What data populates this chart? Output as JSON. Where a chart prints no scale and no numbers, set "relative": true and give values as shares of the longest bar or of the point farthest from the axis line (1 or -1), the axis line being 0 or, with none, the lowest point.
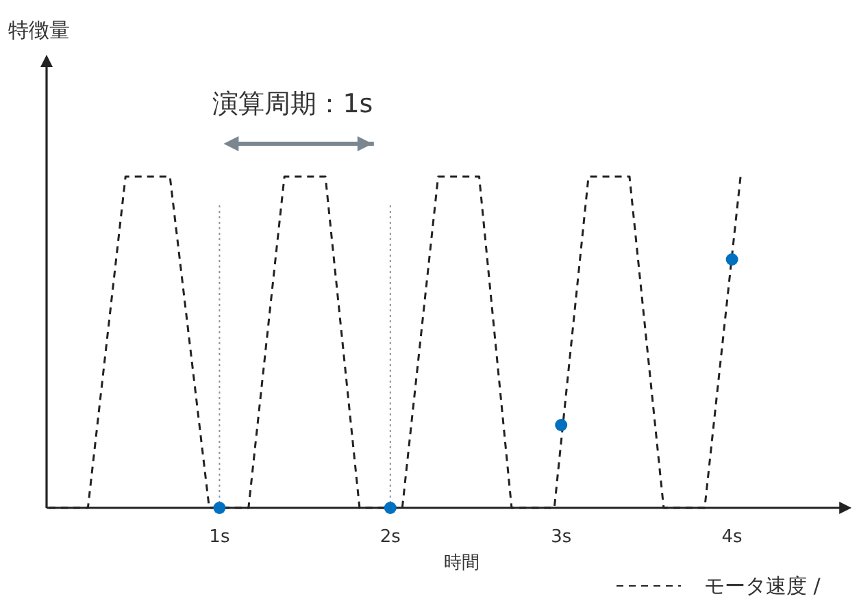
{
  "chart_data": {
    "type": "line",
    "relative": true,
    "xlabel": "時間",
    "legend": "bottom right",
    "xlim": [
      0,
      4.7
    ],
    "xticks": [
      {
        "value": 1,
        "label": "1s"
      },
      {
        "value": 2,
        "label": "2s"
      },
      {
        "value": 3,
        "label": "3s"
      },
      {
        "value": 4,
        "label": "4s"
      }
    ],
    "annotations": [
      "演算周期：1s",
      "特徴量"
    ],
    "ref_lines": [
      {
        "axis": "x",
        "value": 1,
        "label": null,
        "color": "#8a939b",
        "line_style": "dotted"
      },
      {
        "axis": "x",
        "value": 2,
        "label": null,
        "color": "#8a939b",
        "line_style": "dotted"
      }
    ],
    "series": [
      {
        "name": "モータ速度 /",
        "color": "#222222",
        "line_style": "dashed",
        "marker": "none",
        "x": [
          0,
          0.23,
          0.45,
          0.71,
          0.94,
          1.17,
          1.38,
          1.62,
          1.82,
          2.07,
          2.28,
          2.52,
          2.71,
          2.96,
          3.16,
          3.4,
          3.6,
          3.84,
          4.05
        ],
        "values": [
          0,
          0,
          1,
          1,
          0,
          0,
          1,
          1,
          0,
          0,
          1,
          1,
          0,
          0,
          1,
          1,
          0,
          0,
          1
        ]
      },
      {
        "type": "scatter",
        "color": "#0070c0",
        "marker": "circle",
        "x": [
          1,
          2,
          3,
          4
        ],
        "values": [
          0,
          0,
          0.25,
          0.75
        ]
      }
    ]
  }
}
